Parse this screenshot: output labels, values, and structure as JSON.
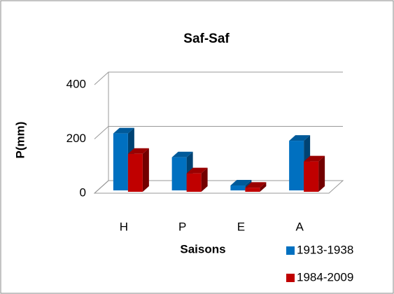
{
  "chart_data": {
    "type": "bar3d",
    "title": "Saf-Saf",
    "x_label": "Saisons",
    "y_label": "P(mm)",
    "categories": [
      "H",
      "P",
      "E",
      "A"
    ],
    "series": [
      {
        "name": "1913-1938",
        "color": "#0070c0",
        "values": [
          210,
          122,
          18,
          183
        ]
      },
      {
        "name": "1984-2009",
        "color": "#c00000",
        "values": [
          140,
          68,
          15,
          112
        ]
      }
    ],
    "ylim": [
      0,
      400
    ],
    "yticks": [
      0,
      200,
      400
    ],
    "grid": true,
    "legend": "bottom-right"
  }
}
